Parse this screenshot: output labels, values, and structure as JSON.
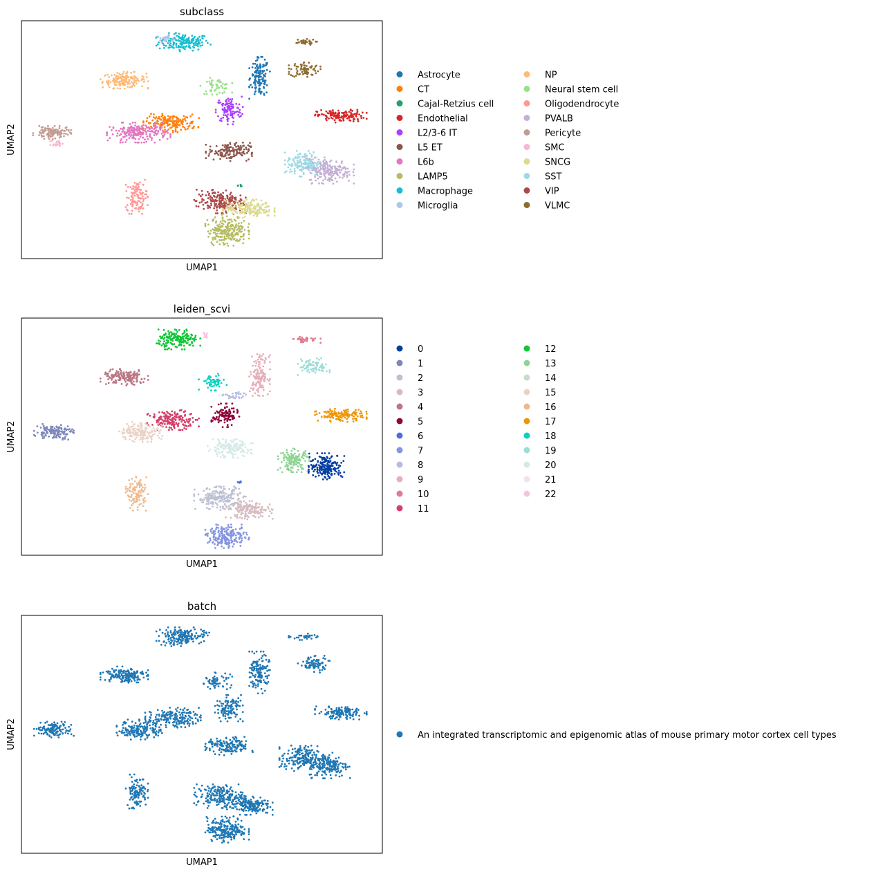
{
  "chart_data": [
    {
      "type": "scatter",
      "title": "subclass",
      "xlabel": "UMAP1",
      "ylabel": "UMAP2",
      "xlim": [
        0,
        100
      ],
      "ylim": [
        0,
        100
      ],
      "grid": false,
      "ticks": false,
      "legend_placement": "right",
      "legend_columns": 2,
      "legend": [
        {
          "label": "Astrocyte",
          "color": "#1f77b4"
        },
        {
          "label": "CT",
          "color": "#ff7f0e"
        },
        {
          "label": "Cajal-Retzius cell",
          "color": "#279e68"
        },
        {
          "label": "Endothelial",
          "color": "#d62728"
        },
        {
          "label": "L2/3-6 IT",
          "color": "#aa40fc"
        },
        {
          "label": "L5 ET",
          "color": "#8c564b"
        },
        {
          "label": "L6b",
          "color": "#e377c2"
        },
        {
          "label": "LAMP5",
          "color": "#b5bd61"
        },
        {
          "label": "Macrophage",
          "color": "#17becf"
        },
        {
          "label": "Microglia",
          "color": "#aec7e8"
        },
        {
          "label": "NP",
          "color": "#ffbb78"
        },
        {
          "label": "Neural stem cell",
          "color": "#98df8a"
        },
        {
          "label": "Oligodendrocyte",
          "color": "#ff9896"
        },
        {
          "label": "PVALB",
          "color": "#c5b0d5"
        },
        {
          "label": "Pericyte",
          "color": "#c49c94"
        },
        {
          "label": "SMC",
          "color": "#f7b6d2"
        },
        {
          "label": "SNCG",
          "color": "#dbdb8d"
        },
        {
          "label": "SST",
          "color": "#9edae5"
        },
        {
          "label": "VIP",
          "color": "#ad494a"
        },
        {
          "label": "VLMC",
          "color": "#8c6d31"
        }
      ],
      "clusters": [
        {
          "color": "#17becf",
          "x": 45,
          "y": 91,
          "rx": 7,
          "ry": 3.5,
          "n": 170
        },
        {
          "color": "#aec7e8",
          "x": 40,
          "y": 92.5,
          "rx": 2.2,
          "ry": 1.5,
          "n": 25
        },
        {
          "color": "#ffbb78",
          "x": 28.5,
          "y": 75,
          "rx": 6,
          "ry": 3.2,
          "n": 160
        },
        {
          "color": "#1f77b4",
          "x": 66,
          "y": 76,
          "rx": 2.6,
          "ry": 8,
          "n": 140
        },
        {
          "color": "#98df8a",
          "x": 54,
          "y": 72.5,
          "rx": 4,
          "ry": 3.2,
          "n": 55
        },
        {
          "color": "#aa40fc",
          "x": 57.5,
          "y": 62.5,
          "rx": 3.5,
          "ry": 5.5,
          "n": 110
        },
        {
          "color": "#8c6d31",
          "x": 78.5,
          "y": 79.5,
          "rx": 4,
          "ry": 3.2,
          "n": 75
        },
        {
          "color": "#8c6d31",
          "x": 78,
          "y": 91,
          "rx": 3.5,
          "ry": 1.2,
          "n": 35
        },
        {
          "color": "#d62728",
          "x": 88.5,
          "y": 60,
          "rx": 6.5,
          "ry": 2.5,
          "n": 140
        },
        {
          "color": "#ff7f0e",
          "x": 41.5,
          "y": 57,
          "rx": 7,
          "ry": 3.5,
          "n": 170
        },
        {
          "color": "#e377c2",
          "x": 32.5,
          "y": 53,
          "rx": 8,
          "ry": 3.8,
          "n": 210
        },
        {
          "color": "#c49c94",
          "x": 8.5,
          "y": 53,
          "rx": 4.8,
          "ry": 2.5,
          "n": 120
        },
        {
          "color": "#f7b6d2",
          "x": 10,
          "y": 48.5,
          "rx": 1.8,
          "ry": 1.3,
          "n": 18
        },
        {
          "color": "#8c564b",
          "x": 57.5,
          "y": 45,
          "rx": 5.8,
          "ry": 3.6,
          "n": 150
        },
        {
          "color": "#9edae5",
          "x": 78.5,
          "y": 40,
          "rx": 5,
          "ry": 5,
          "n": 170
        },
        {
          "color": "#c5b0d5",
          "x": 85.5,
          "y": 37,
          "rx": 6,
          "ry": 5,
          "n": 190
        },
        {
          "color": "#ff9896",
          "x": 32,
          "y": 26,
          "rx": 2.8,
          "ry": 6.5,
          "n": 110
        },
        {
          "color": "#ad494a",
          "x": 55,
          "y": 24,
          "rx": 6.5,
          "ry": 4.5,
          "n": 200
        },
        {
          "color": "#dbdb8d",
          "x": 63,
          "y": 21,
          "rx": 6.5,
          "ry": 3.5,
          "n": 170
        },
        {
          "color": "#b5bd61",
          "x": 57,
          "y": 12,
          "rx": 5.5,
          "ry": 6,
          "n": 230
        },
        {
          "color": "#279e68",
          "x": 60.5,
          "y": 30.5,
          "rx": 0.6,
          "ry": 0.6,
          "n": 5
        }
      ]
    },
    {
      "type": "scatter",
      "title": "leiden_scvi",
      "xlabel": "UMAP1",
      "ylabel": "UMAP2",
      "xlim": [
        0,
        100
      ],
      "ylim": [
        0,
        100
      ],
      "grid": false,
      "ticks": false,
      "legend_placement": "right",
      "legend_columns": 2,
      "legend": [
        {
          "label": "0",
          "color": "#023fa5"
        },
        {
          "label": "1",
          "color": "#7d87b9"
        },
        {
          "label": "2",
          "color": "#bec1d4"
        },
        {
          "label": "3",
          "color": "#d6bcc0"
        },
        {
          "label": "4",
          "color": "#bb7784"
        },
        {
          "label": "5",
          "color": "#8e063b"
        },
        {
          "label": "6",
          "color": "#4a6fe3"
        },
        {
          "label": "7",
          "color": "#8595e1"
        },
        {
          "label": "8",
          "color": "#b5bbe3"
        },
        {
          "label": "9",
          "color": "#e6afb9"
        },
        {
          "label": "10",
          "color": "#e07b91"
        },
        {
          "label": "11",
          "color": "#d33f6a"
        },
        {
          "label": "12",
          "color": "#11c638"
        },
        {
          "label": "13",
          "color": "#8dd593"
        },
        {
          "label": "14",
          "color": "#c6dec7"
        },
        {
          "label": "15",
          "color": "#ead3c6"
        },
        {
          "label": "16",
          "color": "#f0b98d"
        },
        {
          "label": "17",
          "color": "#ef9708"
        },
        {
          "label": "18",
          "color": "#0fcfc0"
        },
        {
          "label": "19",
          "color": "#9cded6"
        },
        {
          "label": "20",
          "color": "#d5eae7"
        },
        {
          "label": "21",
          "color": "#f3e1eb"
        },
        {
          "label": "22",
          "color": "#f6c4e1"
        }
      ],
      "clusters": [
        {
          "color": "#11c638",
          "x": 43.5,
          "y": 91,
          "rx": 5.5,
          "ry": 3.8,
          "n": 170
        },
        {
          "color": "#f6c4e1",
          "x": 51,
          "y": 92.5,
          "rx": 1.5,
          "ry": 1.2,
          "n": 10
        },
        {
          "color": "#bb7784",
          "x": 28.5,
          "y": 75,
          "rx": 6,
          "ry": 3.2,
          "n": 160
        },
        {
          "color": "#e6afb9",
          "x": 66,
          "y": 76,
          "rx": 2.6,
          "ry": 8,
          "n": 140
        },
        {
          "color": "#0fcfc0",
          "x": 53,
          "y": 73,
          "rx": 3.5,
          "ry": 3.2,
          "n": 55
        },
        {
          "color": "#b5bbe3",
          "x": 59,
          "y": 67,
          "rx": 3,
          "ry": 1.8,
          "n": 30
        },
        {
          "color": "#e07b91",
          "x": 78.5,
          "y": 91,
          "rx": 4,
          "ry": 1.3,
          "n": 35
        },
        {
          "color": "#9cded6",
          "x": 81,
          "y": 79.5,
          "rx": 4,
          "ry": 3.2,
          "n": 75
        },
        {
          "color": "#8e063b",
          "x": 56.5,
          "y": 59,
          "rx": 3.5,
          "ry": 4.5,
          "n": 110
        },
        {
          "color": "#ef9708",
          "x": 88.5,
          "y": 59,
          "rx": 6.5,
          "ry": 2.5,
          "n": 140
        },
        {
          "color": "#d33f6a",
          "x": 42,
          "y": 57,
          "rx": 6.5,
          "ry": 3.8,
          "n": 170
        },
        {
          "color": "#ead3c6",
          "x": 33,
          "y": 52,
          "rx": 5.5,
          "ry": 3.8,
          "n": 160
        },
        {
          "color": "#7d87b9",
          "x": 9,
          "y": 52,
          "rx": 5,
          "ry": 3,
          "n": 130
        },
        {
          "color": "#d5eae7",
          "x": 57.5,
          "y": 45,
          "rx": 6,
          "ry": 3.6,
          "n": 150
        },
        {
          "color": "#8dd593",
          "x": 75.5,
          "y": 40,
          "rx": 4,
          "ry": 4.5,
          "n": 140
        },
        {
          "color": "#023fa5",
          "x": 84.5,
          "y": 37.5,
          "rx": 4.5,
          "ry": 5,
          "n": 200
        },
        {
          "color": "#f0b98d",
          "x": 32,
          "y": 26,
          "rx": 2.8,
          "ry": 6.5,
          "n": 110
        },
        {
          "color": "#bec1d4",
          "x": 55,
          "y": 24,
          "rx": 6.5,
          "ry": 4.5,
          "n": 200
        },
        {
          "color": "#d6bcc0",
          "x": 63,
          "y": 19,
          "rx": 6,
          "ry": 3.5,
          "n": 160
        },
        {
          "color": "#8595e1",
          "x": 57,
          "y": 8,
          "rx": 5.5,
          "ry": 4.5,
          "n": 200
        },
        {
          "color": "#4a6fe3",
          "x": 60.5,
          "y": 30.5,
          "rx": 0.6,
          "ry": 0.6,
          "n": 5
        }
      ]
    },
    {
      "type": "scatter",
      "title": "batch",
      "xlabel": "UMAP1",
      "ylabel": "UMAP2",
      "xlim": [
        0,
        100
      ],
      "ylim": [
        0,
        100
      ],
      "grid": false,
      "ticks": false,
      "legend_placement": "right",
      "legend_columns": 1,
      "legend": [
        {
          "label": "An integrated transcriptomic and epigenomic atlas of mouse primary motor cortex cell types",
          "color": "#1f77b4"
        }
      ],
      "clusters": [
        {
          "color": "#1f77b4",
          "x": 44,
          "y": 91,
          "rx": 6,
          "ry": 3.6,
          "n": 170
        },
        {
          "color": "#1f77b4",
          "x": 51,
          "y": 92.5,
          "rx": 1.5,
          "ry": 1.2,
          "n": 10
        },
        {
          "color": "#1f77b4",
          "x": 28.5,
          "y": 75,
          "rx": 6,
          "ry": 3.2,
          "n": 160
        },
        {
          "color": "#1f77b4",
          "x": 66,
          "y": 76,
          "rx": 2.6,
          "ry": 8,
          "n": 140
        },
        {
          "color": "#1f77b4",
          "x": 54,
          "y": 72.5,
          "rx": 4,
          "ry": 3.2,
          "n": 55
        },
        {
          "color": "#1f77b4",
          "x": 78.5,
          "y": 91,
          "rx": 4,
          "ry": 1.2,
          "n": 35
        },
        {
          "color": "#1f77b4",
          "x": 81,
          "y": 79.5,
          "rx": 4,
          "ry": 3.2,
          "n": 75
        },
        {
          "color": "#1f77b4",
          "x": 57.5,
          "y": 61,
          "rx": 3.5,
          "ry": 5,
          "n": 110
        },
        {
          "color": "#1f77b4",
          "x": 88.5,
          "y": 59,
          "rx": 6.5,
          "ry": 2.5,
          "n": 140
        },
        {
          "color": "#1f77b4",
          "x": 42,
          "y": 57,
          "rx": 7,
          "ry": 3.8,
          "n": 170
        },
        {
          "color": "#1f77b4",
          "x": 33,
          "y": 52,
          "rx": 6,
          "ry": 3.8,
          "n": 170
        },
        {
          "color": "#1f77b4",
          "x": 9,
          "y": 52,
          "rx": 5,
          "ry": 3,
          "n": 130
        },
        {
          "color": "#1f77b4",
          "x": 57.5,
          "y": 45,
          "rx": 6,
          "ry": 3.6,
          "n": 150
        },
        {
          "color": "#1f77b4",
          "x": 77,
          "y": 40,
          "rx": 5,
          "ry": 5,
          "n": 170
        },
        {
          "color": "#1f77b4",
          "x": 85,
          "y": 37,
          "rx": 5.5,
          "ry": 5,
          "n": 190
        },
        {
          "color": "#1f77b4",
          "x": 32,
          "y": 26,
          "rx": 2.8,
          "ry": 6.5,
          "n": 110
        },
        {
          "color": "#1f77b4",
          "x": 55,
          "y": 24,
          "rx": 6.5,
          "ry": 4.5,
          "n": 200
        },
        {
          "color": "#1f77b4",
          "x": 63,
          "y": 20,
          "rx": 6,
          "ry": 3.5,
          "n": 160
        },
        {
          "color": "#1f77b4",
          "x": 57,
          "y": 10,
          "rx": 5.5,
          "ry": 5,
          "n": 220
        }
      ]
    }
  ]
}
